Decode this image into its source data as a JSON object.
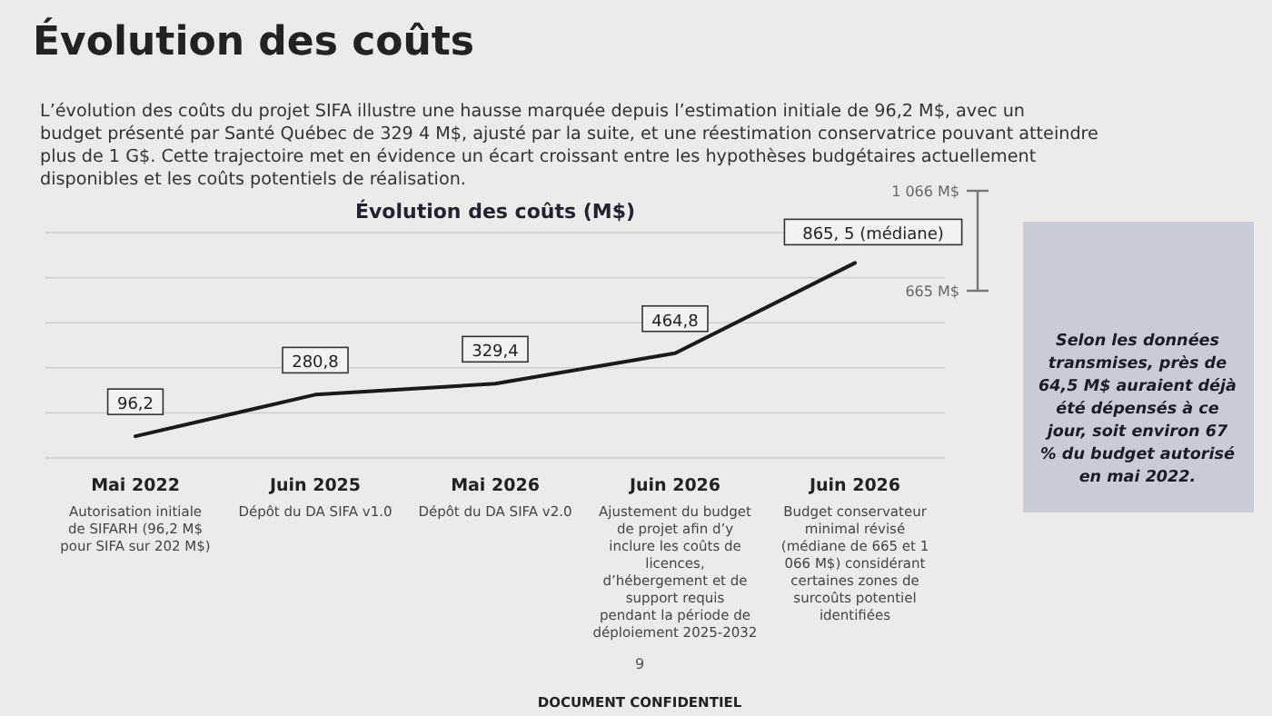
{
  "chart_data": {
    "type": "line",
    "title": "Évolution des coûts (M$)",
    "subtitle": "Évolution des coûts",
    "categories": [
      "Mai 2022\nAutorisation initiale de SIFARH (96,2 M$ pour SIFA sur 202 M$)",
      "Juin 2025\nDépôt du DA SIFA v1.0",
      "Mai 2026\nDépôt du DA SIFA v2.0",
      "Juin 2026\nAjustement du budget de projet afin d’y inclure les coûts de licences, d’hébergement et de support requis pendant la période de déploiement 2025-2032",
      "Juin 2026\nBudget conservateur minimal révisé (médiane de 665 et 1 066 M$) considérant certaines zones de surcoûts potentiel identifiées"
    ],
    "series": [
      {
        "color": "#1a1a1a",
        "values": [
          96.2,
          280.8,
          329.4,
          464.8,
          865.5
        ],
        "value_labels": [
          "96,2",
          "280,8",
          "329,4",
          "464,8",
          "865, 5 (médiane)"
        ]
      }
    ],
    "yticks": [
      {
        "value": 0,
        "label": null
      },
      {
        "value": 200,
        "label": null
      },
      {
        "value": 400,
        "label": null
      },
      {
        "value": 600,
        "label": null
      },
      {
        "value": 800,
        "label": null
      },
      {
        "value": 1000,
        "label": null
      }
    ],
    "grid": "y",
    "marker": "none",
    "line_style": "solid",
    "annotations": [
      "L’évolution des coûts du projet SIFA illustre une hausse marquée depuis l’estimation initiale de 96,2 M$, avec un budget présenté par Santé Québec de 329 4 M$, ajusté par la suite, et une réestimation conservatrice pouvant atteindre plus de 1 G$. Cette trajectoire met en évidence un écart croissant entre les hypothèses budgétaires actuellement disponibles et les coûts potentiels de réalisation.",
      "1 066 M$",
      "665 M$",
      "Selon les données transmises, près de 64,5 M$ auraient déjà été dépensés à ce jour, soit environ 67 % du budget autorisé en mai 2022.",
      "9",
      "DOCUMENT CONFIDENTIEL"
    ]
  }
}
